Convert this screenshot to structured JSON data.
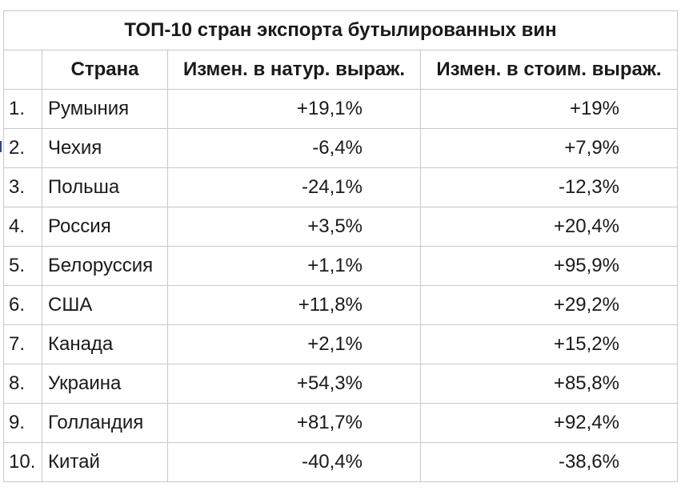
{
  "table": {
    "title": "ТОП-10 стран экспорта бутылированных вин",
    "headers": {
      "num": "",
      "country": "Страна",
      "volume": "Измен. в натур. выраж.",
      "value": "Измен. в стоим. выраж."
    },
    "rows": [
      {
        "num": "1.",
        "country": "Румыния",
        "volume": "+19,1%",
        "value": "+19%"
      },
      {
        "num": "2.",
        "country": "Чехия",
        "volume": "-6,4%",
        "value": "+7,9%"
      },
      {
        "num": "3.",
        "country": "Польша",
        "volume": "-24,1%",
        "value": "-12,3%"
      },
      {
        "num": "4.",
        "country": "Россия",
        "volume": "+3,5%",
        "value": "+20,4%"
      },
      {
        "num": "5.",
        "country": "Белоруссия",
        "volume": "+1,1%",
        "value": "+95,9%"
      },
      {
        "num": "6.",
        "country": "США",
        "volume": "+11,8%",
        "value": "+29,2%"
      },
      {
        "num": "7.",
        "country": "Канада",
        "volume": "+2,1%",
        "value": "+15,2%"
      },
      {
        "num": "8.",
        "country": "Украина",
        "volume": "+54,3%",
        "value": "+85,8%"
      },
      {
        "num": "9.",
        "country": "Голландия",
        "volume": "+81,7%",
        "value": "+92,4%"
      },
      {
        "num": "10.",
        "country": "Китай",
        "volume": "-40,4%",
        "value": "-38,6%"
      }
    ]
  }
}
